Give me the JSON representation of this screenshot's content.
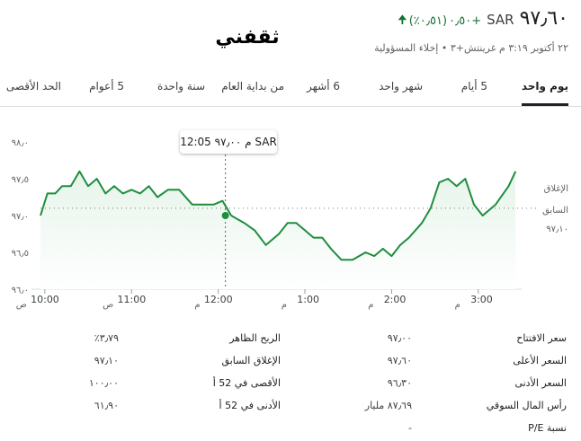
{
  "header": {
    "price": "٩٧٫٦٠",
    "currency": "SAR",
    "change": "+٠٫٥٠",
    "change_pct": "(٠٫٥١٪)",
    "timestamp": "٢٢ أكتوبر ٣:١٩ م غرينتش+٣",
    "separator": "•",
    "disclaimer": "إخلاء المسؤولية",
    "logo_text": "ثقفني",
    "colors": {
      "positive": "#137333",
      "text": "#202124"
    }
  },
  "tabs": [
    {
      "label": "يوم واحد",
      "active": true
    },
    {
      "label": "5 أيام",
      "active": false
    },
    {
      "label": "شهر واحد",
      "active": false
    },
    {
      "label": "6 أشهر",
      "active": false
    },
    {
      "label": "من بداية العام",
      "active": false
    },
    {
      "label": "سنة واحدة",
      "active": false
    },
    {
      "label": "5 أعوام",
      "active": false
    },
    {
      "label": "الحد الأقصى",
      "active": false
    }
  ],
  "tooltip": {
    "time": "12:05 م",
    "value": "٩٧٫٠٠ SAR"
  },
  "chart_data": {
    "type": "area",
    "title": "",
    "xlabel": "",
    "ylabel": "",
    "ylim": [
      96.0,
      98.0
    ],
    "yticks": [
      "٩٦٫٠",
      "٩٦٫٥",
      "٩٧٫٠",
      "٩٧٫٥",
      "٩٨٫٠"
    ],
    "ytick_values": [
      96.0,
      96.5,
      97.0,
      97.5,
      98.0
    ],
    "xlim": [
      9.95,
      15.5
    ],
    "xticks": [
      {
        "value": 10.0,
        "label": "10:00",
        "period": "ص"
      },
      {
        "value": 11.0,
        "label": "11:00",
        "period": "ص"
      },
      {
        "value": 12.0,
        "label": "12:00",
        "period": "م"
      },
      {
        "value": 13.0,
        "label": "1:00",
        "period": "م"
      },
      {
        "value": 14.0,
        "label": "2:00",
        "period": "م"
      },
      {
        "value": 15.0,
        "label": "3:00",
        "period": "م"
      }
    ],
    "previous_close": 97.1,
    "previous_close_label": "السابق",
    "close_label": "الإغلاق",
    "previous_close_value_label": "٩٧٫١٠",
    "hover_x": 12.083,
    "hover_y": 97.0,
    "grid": false,
    "line_color": "#1e8e3e",
    "x": [
      9.95,
      10.03,
      10.12,
      10.2,
      10.3,
      10.4,
      10.5,
      10.6,
      10.7,
      10.8,
      10.9,
      11.0,
      11.1,
      11.2,
      11.3,
      11.42,
      11.55,
      11.7,
      11.8,
      11.95,
      12.05,
      12.15,
      12.3,
      12.42,
      12.55,
      12.7,
      12.8,
      12.9,
      13.0,
      13.1,
      13.2,
      13.3,
      13.42,
      13.55,
      13.7,
      13.8,
      13.9,
      14.0,
      14.1,
      14.2,
      14.35,
      14.45,
      14.55,
      14.65,
      14.75,
      14.85,
      14.95,
      15.05,
      15.2,
      15.35,
      15.43
    ],
    "y": [
      97.0,
      97.3,
      97.3,
      97.4,
      97.4,
      97.6,
      97.4,
      97.5,
      97.3,
      97.4,
      97.3,
      97.35,
      97.3,
      97.4,
      97.25,
      97.35,
      97.35,
      97.15,
      97.15,
      97.15,
      97.2,
      97.0,
      96.9,
      96.8,
      96.6,
      96.75,
      96.9,
      96.9,
      96.8,
      96.7,
      96.7,
      96.55,
      96.4,
      96.4,
      96.5,
      96.45,
      96.55,
      96.45,
      96.6,
      96.7,
      96.9,
      97.1,
      97.45,
      97.5,
      97.4,
      97.5,
      97.15,
      97.0,
      97.15,
      97.4,
      97.6
    ]
  },
  "stats": {
    "left": [
      {
        "label": "سعر الافتتاح",
        "value": "٩٧٫٠٠"
      },
      {
        "label": "السعر الأعلى",
        "value": "٩٧٫٦٠"
      },
      {
        "label": "السعر الأدنى",
        "value": "٩٦٫٣٠"
      },
      {
        "label": "رأس المال السوقي",
        "value": "٨٧٫٦٩ مليار"
      },
      {
        "label": "نسبة P/E",
        "value": "-"
      }
    ],
    "right": [
      {
        "label": "الربح الظاهر",
        "value": "٣٫٧٩٪"
      },
      {
        "label": "الإغلاق السابق",
        "value": "٩٧٫١٠"
      },
      {
        "label": "الأقصى في 52 أ",
        "value": "١٠٠٫٠٠"
      },
      {
        "label": "الأدنى في 52 أ",
        "value": "٦١٫٩٠"
      }
    ]
  }
}
